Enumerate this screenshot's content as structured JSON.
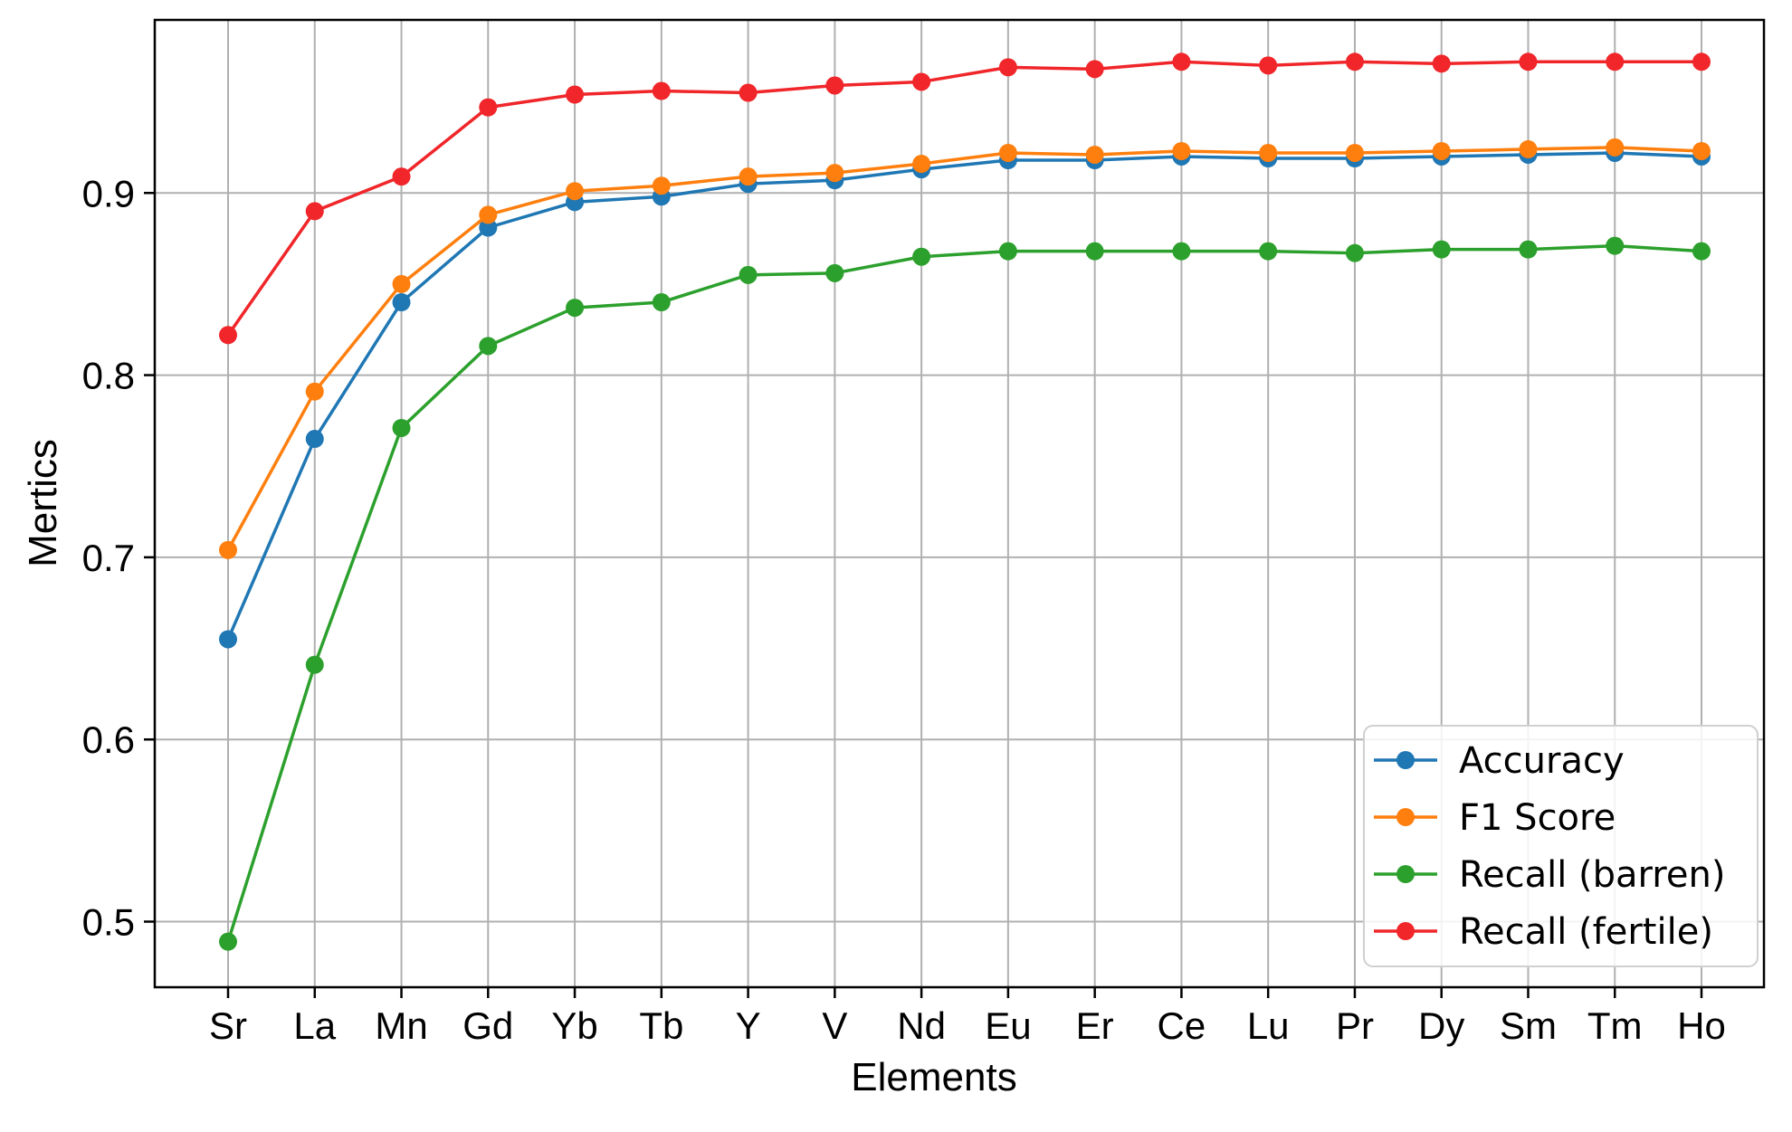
{
  "chart_data": {
    "type": "line",
    "xlabel": "Elements",
    "ylabel": "Mertics",
    "categories": [
      "Sr",
      "La",
      "Mn",
      "Gd",
      "Yb",
      "Tb",
      "Y",
      "V",
      "Nd",
      "Eu",
      "Er",
      "Ce",
      "Lu",
      "Pr",
      "Dy",
      "Sm",
      "Tm",
      "Ho"
    ],
    "ylim": [
      0.464,
      0.995
    ],
    "yticks": [
      0.5,
      0.6,
      0.7,
      0.8,
      0.9
    ],
    "ytick_labels": [
      "0.5",
      "0.6",
      "0.7",
      "0.8",
      "0.9"
    ],
    "grid": true,
    "legend_position": "bottom-right",
    "series": [
      {
        "name": "Accuracy",
        "color": "#1f77b4",
        "values": [
          0.655,
          0.765,
          0.84,
          0.881,
          0.895,
          0.898,
          0.905,
          0.907,
          0.913,
          0.918,
          0.918,
          0.92,
          0.919,
          0.919,
          0.92,
          0.921,
          0.922,
          0.92
        ]
      },
      {
        "name": "F1 Score",
        "color": "#ff7f0e",
        "values": [
          0.704,
          0.791,
          0.85,
          0.888,
          0.901,
          0.904,
          0.909,
          0.911,
          0.916,
          0.922,
          0.921,
          0.923,
          0.922,
          0.922,
          0.923,
          0.924,
          0.925,
          0.923
        ]
      },
      {
        "name": "Recall (barren)",
        "color": "#2ca02c",
        "values": [
          0.489,
          0.641,
          0.771,
          0.816,
          0.837,
          0.84,
          0.855,
          0.856,
          0.865,
          0.868,
          0.868,
          0.868,
          0.868,
          0.867,
          0.869,
          0.869,
          0.871,
          0.868
        ]
      },
      {
        "name": "Recall (fertile)",
        "color": "#f0262a",
        "values": [
          0.822,
          0.89,
          0.909,
          0.947,
          0.954,
          0.956,
          0.955,
          0.959,
          0.961,
          0.969,
          0.968,
          0.972,
          0.97,
          0.972,
          0.971,
          0.972,
          0.972,
          0.972
        ]
      }
    ]
  }
}
